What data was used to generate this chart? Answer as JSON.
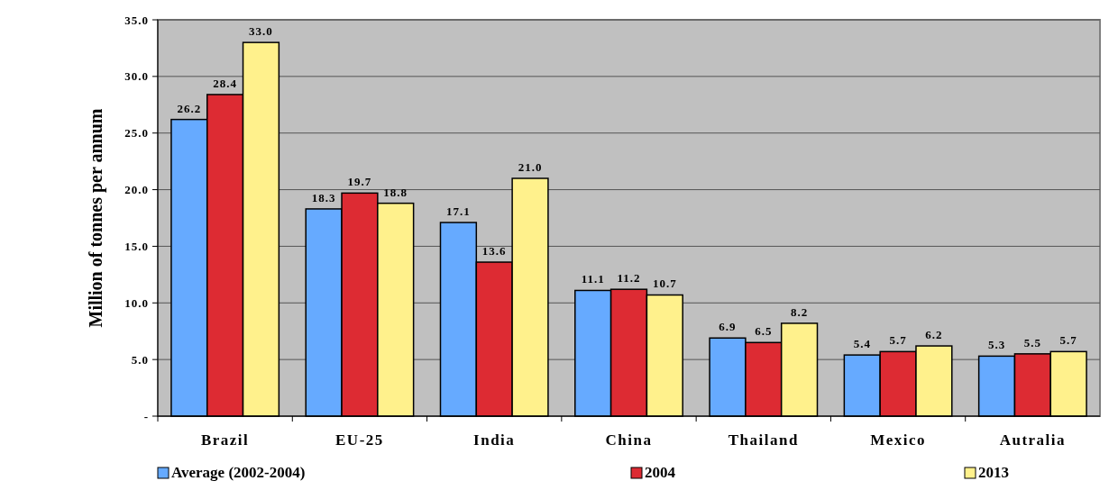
{
  "chart_data": {
    "type": "bar",
    "ylabel": "Million of tonnes per annum",
    "categories": [
      "Brazil",
      "EU-25",
      "India",
      "China",
      "Thailand",
      "Mexico",
      "Autralia"
    ],
    "series": [
      {
        "name": "Average (2002-2004)",
        "color": "#66aaff",
        "values": [
          26.2,
          18.3,
          17.1,
          11.1,
          6.9,
          5.4,
          5.3
        ],
        "value_labels": [
          "26.2",
          "18.3",
          "17.1",
          "11.1",
          "6.9",
          "5.4",
          "5.3"
        ]
      },
      {
        "name": "2004",
        "color": "#dd2b33",
        "values": [
          28.4,
          19.7,
          13.6,
          11.2,
          6.5,
          5.7,
          5.5
        ],
        "value_labels": [
          "28.4",
          "19.7",
          "13.6",
          "11.2",
          "6.5",
          "5.7",
          "5.5"
        ]
      },
      {
        "name": "2013",
        "color": "#fff18c",
        "values": [
          33.0,
          18.8,
          21.0,
          10.7,
          8.2,
          6.2,
          5.7
        ],
        "value_labels": [
          "33.0",
          "18.8",
          "21.0",
          "10.7",
          "8.2",
          "6.2",
          "5.7"
        ]
      }
    ],
    "ylim": [
      0,
      35
    ],
    "yticks": [
      {
        "value": 0,
        "label": "-"
      },
      {
        "value": 5,
        "label": "5.0"
      },
      {
        "value": 10,
        "label": "10.0"
      },
      {
        "value": 15,
        "label": "15.0"
      },
      {
        "value": 20,
        "label": "20.0"
      },
      {
        "value": 25,
        "label": "25.0"
      },
      {
        "value": 30,
        "label": "30.0"
      },
      {
        "value": 35,
        "label": "35.0"
      }
    ],
    "grid": "y",
    "legend": "bottom"
  }
}
